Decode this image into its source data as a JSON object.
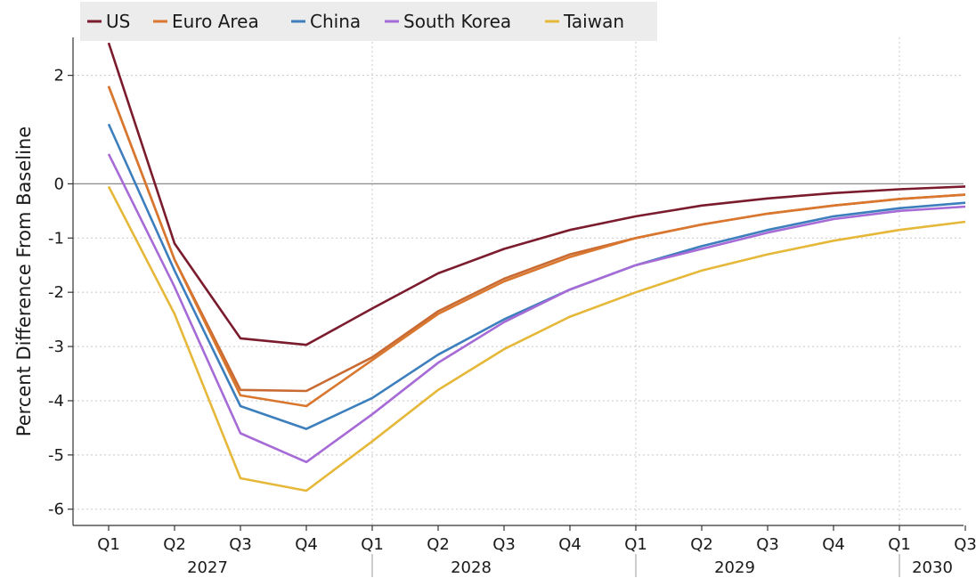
{
  "chart_data": {
    "type": "line",
    "title": "",
    "ylabel": "Percent Difference From Baseline",
    "xlabel": "",
    "ylim": [
      -6.3,
      2.7
    ],
    "yticks": [
      2,
      0,
      -1,
      -2,
      -3,
      -4,
      -5,
      -6
    ],
    "y_tick_labels": [
      "2",
      "0",
      "-1",
      "-2",
      "-3",
      "-4",
      "-5",
      "-6"
    ],
    "quarters": [
      "Q1",
      "Q2",
      "Q3",
      "Q4",
      "Q1",
      "Q2",
      "Q3",
      "Q4",
      "Q1",
      "Q2",
      "Q3",
      "Q4",
      "Q1",
      "Q3"
    ],
    "x": [
      0,
      1,
      2,
      3,
      4,
      5,
      6,
      7,
      8,
      9,
      10,
      11,
      12,
      13
    ],
    "years": [
      {
        "label": "2027",
        "start": 0,
        "end": 3
      },
      {
        "label": "2028",
        "start": 4,
        "end": 7
      },
      {
        "label": "2029",
        "start": 8,
        "end": 11
      },
      {
        "label": "2030",
        "start": 12,
        "end": 13
      }
    ],
    "grid": true,
    "legend_position": "top-left",
    "series": [
      {
        "name": "US",
        "color": "#7b1c2e",
        "values": [
          2.6,
          -1.1,
          -2.85,
          -2.97,
          -2.3,
          -1.65,
          -1.2,
          -0.85,
          -0.6,
          -0.4,
          -0.27,
          -0.17,
          -0.1,
          -0.05
        ]
      },
      {
        "name": "Euro Area",
        "color": "#d9772f",
        "values": [
          1.8,
          -1.4,
          -3.9,
          -4.1,
          -3.25,
          -2.4,
          -1.8,
          -1.35,
          -1.0,
          -0.75,
          -0.55,
          -0.4,
          -0.28,
          -0.2
        ]
      },
      {
        "name": "China",
        "color": "#3d7fbd",
        "values": [
          1.1,
          -1.6,
          -4.1,
          -4.52,
          -3.95,
          -3.15,
          -2.5,
          -1.95,
          -1.5,
          -1.15,
          -0.85,
          -0.6,
          -0.45,
          -0.35
        ]
      },
      {
        "name": "South Korea",
        "color": "#a66bd6",
        "values": [
          0.55,
          -1.9,
          -4.6,
          -5.13,
          -4.25,
          -3.3,
          -2.55,
          -1.95,
          -1.5,
          -1.2,
          -0.9,
          -0.65,
          -0.5,
          -0.42
        ]
      },
      {
        "name": "Taiwan",
        "color": "#e6b83a",
        "values": [
          -0.05,
          -2.4,
          -5.43,
          -5.66,
          -4.75,
          -3.8,
          -3.05,
          -2.45,
          -2.0,
          -1.6,
          -1.3,
          -1.05,
          -0.85,
          -0.7
        ]
      }
    ],
    "extra_series": [
      {
        "name": "",
        "color": "#c96a32",
        "values": [
          1.8,
          -1.4,
          -3.8,
          -3.82,
          -3.2,
          -2.35,
          -1.75,
          -1.3,
          -1.0,
          -0.75,
          -0.55,
          -0.4,
          -0.28,
          -0.2
        ]
      }
    ]
  }
}
